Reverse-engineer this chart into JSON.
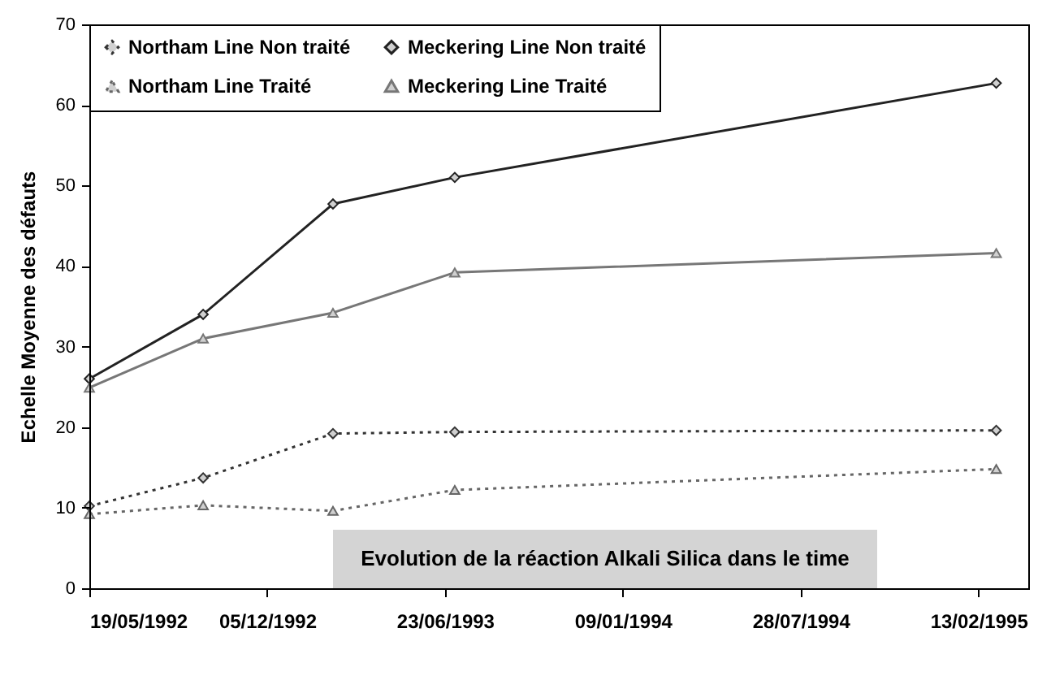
{
  "chart_data": {
    "type": "line",
    "ylabel": "Echelle Moyenne des défauts",
    "annotations": [
      "Evolution de la réaction Alkali Silica dans le time"
    ],
    "x": [
      "1992-05-19",
      "1992-09-24",
      "1993-02-17",
      "1993-07-04",
      "1995-03-05"
    ],
    "series": [
      {
        "name": "Northam Line Non traité",
        "color": "#333333",
        "line_style": "dotted",
        "marker": "diamond",
        "values": [
          10.2,
          13.7,
          19.2,
          19.4,
          19.6
        ]
      },
      {
        "name": "Northam Line Traité",
        "color": "#666666",
        "line_style": "dotted",
        "marker": "triangle",
        "values": [
          9.2,
          10.3,
          9.6,
          12.2,
          14.8
        ]
      },
      {
        "name": "Meckering Line Non traité",
        "color": "#222222",
        "line_style": "solid",
        "marker": "diamond",
        "values": [
          26,
          34,
          47.7,
          51,
          62.7
        ]
      },
      {
        "name": "Meckering Line Traité",
        "color": "#777777",
        "line_style": "solid",
        "marker": "triangle",
        "values": [
          24.9,
          31,
          34.2,
          39.2,
          41.6
        ]
      }
    ],
    "xlim": [
      "1992-05-19",
      "1995-04-10"
    ],
    "xticks": [
      {
        "value": "1992-05-19",
        "label": "19/05/1992"
      },
      {
        "value": "1992-12-05",
        "label": "05/12/1992"
      },
      {
        "value": "1993-06-23",
        "label": "23/06/1993"
      },
      {
        "value": "1994-01-09",
        "label": "09/01/1994"
      },
      {
        "value": "1994-07-28",
        "label": "28/07/1994"
      },
      {
        "value": "1995-02-13",
        "label": "13/02/1995"
      }
    ],
    "ylim": [
      0,
      70
    ],
    "yticks": [
      0,
      10,
      20,
      30,
      40,
      50,
      60,
      70
    ],
    "grid": false,
    "legend": "top left"
  }
}
